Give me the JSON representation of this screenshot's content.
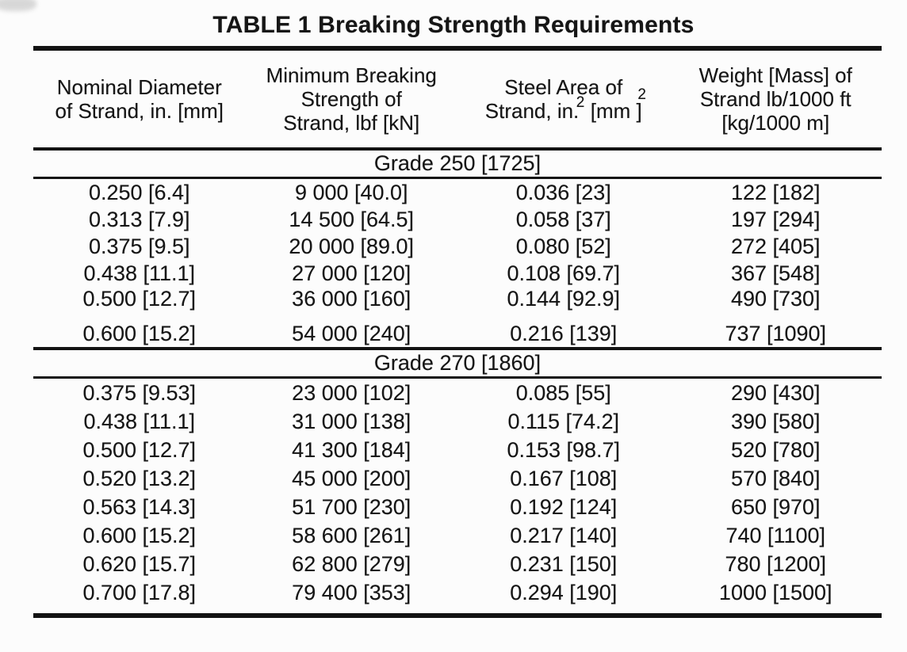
{
  "title": "TABLE 1 Breaking Strength Requirements",
  "colors": {
    "background": "#fcfcfc",
    "text": "#161616",
    "rule": "#131313"
  },
  "columns": [
    {
      "lines": [
        "Nominal Diameter",
        "of Strand, in. [mm]"
      ]
    },
    {
      "lines": [
        "Minimum Breaking",
        "Strength of",
        "Strand, lbf [kN]"
      ]
    },
    {
      "lines": [
        "Steel Area of",
        "Strand, in.  [mm ]"
      ],
      "sup_in": "2",
      "sup_mm": "2"
    },
    {
      "lines": [
        "Weight [Mass] of",
        "Strand lb/1000 ft",
        "[kg/1000 m]"
      ]
    }
  ],
  "sections": [
    {
      "header": "Grade 250 [1725]",
      "rows": [
        [
          "0.250 [6.4]",
          "9 000 [40.0]",
          "0.036 [23]",
          "122 [182]"
        ],
        [
          "0.313 [7.9]",
          "14 500 [64.5]",
          "0.058 [37]",
          "197 [294]"
        ],
        [
          "0.375 [9.5]",
          "20 000 [89.0]",
          "0.080 [52]",
          "272 [405]"
        ],
        [
          "0.438 [11.1]",
          "27 000 [120]",
          "0.108 [69.7]",
          "367 [548]"
        ],
        [
          "0.500 [12.7]",
          "36 000 [160]",
          "0.144 [92.9]",
          "490 [730]"
        ],
        [
          "0.600 [15.2]",
          "54 000 [240]",
          "0.216 [139]",
          "737 [1090]"
        ]
      ]
    },
    {
      "header": "Grade 270 [1860]",
      "rows": [
        [
          "0.375 [9.53]",
          "23 000 [102]",
          "0.085 [55]",
          "290 [430]"
        ],
        [
          "0.438 [11.1]",
          "31 000 [138]",
          "0.115 [74.2]",
          "390 [580]"
        ],
        [
          "0.500 [12.7]",
          "41 300 [184]",
          "0.153 [98.7]",
          "520 [780]"
        ],
        [
          "0.520 [13.2]",
          "45 000 [200]",
          "0.167 [108]",
          "570 [840]"
        ],
        [
          "0.563 [14.3]",
          "51 700 [230]",
          "0.192 [124]",
          "650 [970]"
        ],
        [
          "0.600 [15.2]",
          "58 600 [261]",
          "0.217 [140]",
          "740 [1100]"
        ],
        [
          "0.620 [15.7]",
          "62 800 [279]",
          "0.231 [150]",
          "780 [1200]"
        ],
        [
          "0.700 [17.8]",
          "79 400 [353]",
          "0.294 [190]",
          "1000 [1500]"
        ]
      ]
    }
  ]
}
